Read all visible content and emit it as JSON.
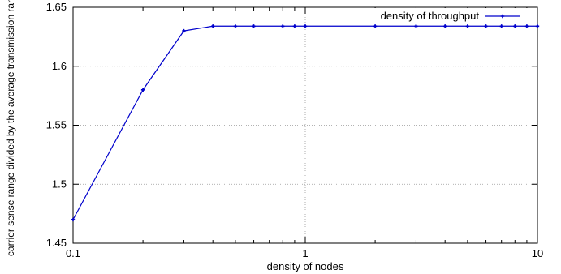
{
  "chart_data": {
    "type": "line",
    "xscale": "log",
    "xlim": [
      0.1,
      10
    ],
    "ylim": [
      1.45,
      1.65
    ],
    "xlabel": "density of nodes",
    "ylabel": "carrier sense range divided by the average transmission range",
    "xticks": [
      0.1,
      1,
      10
    ],
    "xtick_labels": [
      "0.1",
      "1",
      "10"
    ],
    "yticks": [
      1.45,
      1.5,
      1.55,
      1.6,
      1.65
    ],
    "ytick_labels": [
      "1.45",
      "1.5",
      "1.55",
      "1.6",
      "1.65"
    ],
    "grid": true,
    "legend_position": "top-right",
    "series": [
      {
        "name": "density of throughput",
        "color": "#0000cc",
        "x": [
          0.1,
          0.2,
          0.3,
          0.4,
          0.5,
          0.6,
          0.8,
          0.9,
          1,
          2,
          3,
          4,
          5,
          6,
          7,
          8,
          9,
          10
        ],
        "y": [
          1.47,
          1.58,
          1.63,
          1.634,
          1.634,
          1.634,
          1.634,
          1.634,
          1.634,
          1.634,
          1.634,
          1.634,
          1.634,
          1.634,
          1.634,
          1.634,
          1.634,
          1.634
        ]
      }
    ]
  }
}
